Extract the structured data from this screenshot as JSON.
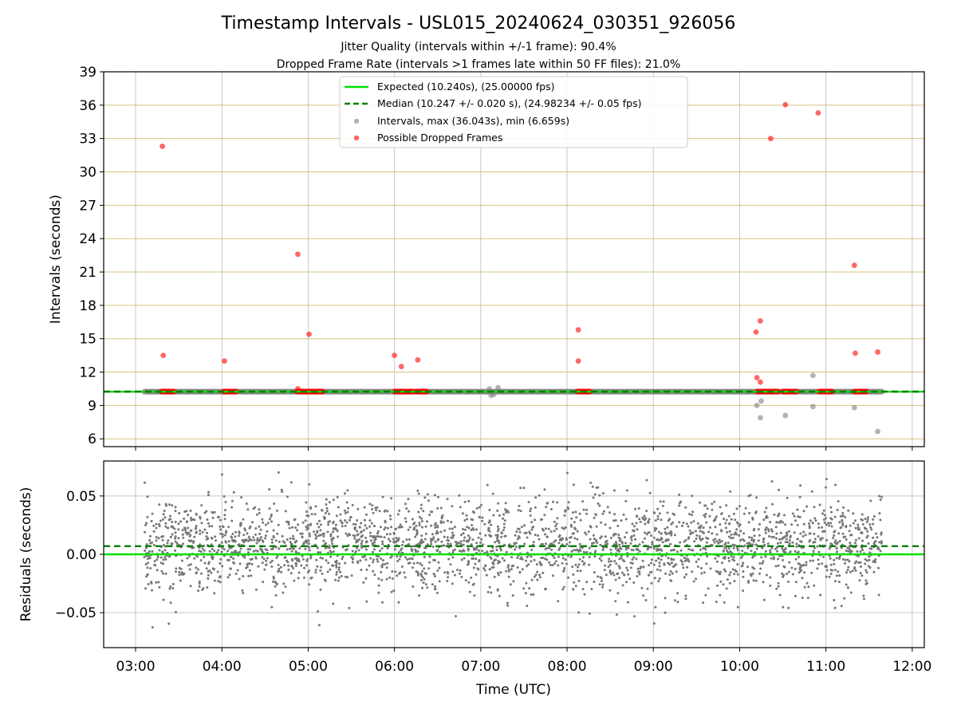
{
  "figure": {
    "title": "Timestamp Intervals - USL015_20240624_030351_926056",
    "subtitle_1": "Jitter Quality (intervals within +/-1 frame): 90.4%",
    "subtitle_2": "Dropped Frame Rate (intervals >1 frames late within 50 FF files): 21.0%"
  },
  "chart_data": [
    {
      "type": "scatter",
      "name": "intervals-panel",
      "ylabel": "Intervals (seconds)",
      "ylim": [
        5.3,
        39
      ],
      "yticks": [
        6,
        9,
        12,
        15,
        18,
        21,
        24,
        27,
        30,
        33,
        36,
        39
      ],
      "xlim_hours": [
        2.63,
        12.14
      ],
      "xticks": [
        "03:00",
        "04:00",
        "05:00",
        "06:00",
        "07:00",
        "08:00",
        "09:00",
        "10:00",
        "11:00",
        "12:00"
      ],
      "xtick_hours": [
        3,
        4,
        5,
        6,
        7,
        8,
        9,
        10,
        11,
        12
      ],
      "grid": true,
      "legend_position": "upper-center",
      "lines": [
        {
          "name": "Expected (10.240s), (25.00000 fps)",
          "y": 10.24,
          "color": "#00e000",
          "style": "solid"
        },
        {
          "name": "Median (10.247 +/- 0.020 s), (24.98234 +/- 0.05 fps)",
          "y": 10.247,
          "color": "#007f00",
          "style": "dashed"
        }
      ],
      "series": [
        {
          "name": "Intervals, max (36.043s), min (6.659s)",
          "color": "#808080",
          "baseline_band": {
            "x_start": 3.1,
            "x_end": 11.65,
            "y": 10.24
          },
          "points": [
            {
              "x": 7.1,
              "y": 10.5
            },
            {
              "x": 7.15,
              "y": 10.0
            },
            {
              "x": 7.2,
              "y": 10.6
            },
            {
              "x": 7.12,
              "y": 9.9
            },
            {
              "x": 10.2,
              "y": 9.0
            },
            {
              "x": 10.24,
              "y": 7.9
            },
            {
              "x": 10.25,
              "y": 9.4
            },
            {
              "x": 10.53,
              "y": 8.1
            },
            {
              "x": 10.85,
              "y": 11.7
            },
            {
              "x": 10.85,
              "y": 8.9
            },
            {
              "x": 11.33,
              "y": 8.8
            },
            {
              "x": 11.6,
              "y": 6.66
            }
          ]
        },
        {
          "name": "Possible Dropped Frames",
          "color": "#ff0000",
          "clusters": [
            {
              "x_start": 3.3,
              "x_end": 3.45,
              "y": 10.25
            },
            {
              "x_start": 4.02,
              "x_end": 4.17,
              "y": 10.25
            },
            {
              "x_start": 4.87,
              "x_end": 5.17,
              "y": 10.25
            },
            {
              "x_start": 6.0,
              "x_end": 6.22,
              "y": 10.25
            },
            {
              "x_start": 6.25,
              "x_end": 6.38,
              "y": 10.25
            },
            {
              "x_start": 8.12,
              "x_end": 8.27,
              "y": 10.25
            },
            {
              "x_start": 10.2,
              "x_end": 10.45,
              "y": 10.25
            },
            {
              "x_start": 10.5,
              "x_end": 10.67,
              "y": 10.25
            },
            {
              "x_start": 10.92,
              "x_end": 11.08,
              "y": 10.25
            },
            {
              "x_start": 11.33,
              "x_end": 11.48,
              "y": 10.25
            }
          ],
          "points": [
            {
              "x": 3.31,
              "y": 32.3
            },
            {
              "x": 3.32,
              "y": 13.5
            },
            {
              "x": 4.03,
              "y": 13.0
            },
            {
              "x": 4.88,
              "y": 22.6
            },
            {
              "x": 4.88,
              "y": 10.5
            },
            {
              "x": 5.01,
              "y": 15.4
            },
            {
              "x": 6.0,
              "y": 13.5
            },
            {
              "x": 6.08,
              "y": 12.5
            },
            {
              "x": 6.27,
              "y": 13.1
            },
            {
              "x": 8.13,
              "y": 15.8
            },
            {
              "x": 8.13,
              "y": 13.0
            },
            {
              "x": 10.19,
              "y": 15.6
            },
            {
              "x": 10.2,
              "y": 11.5
            },
            {
              "x": 10.24,
              "y": 16.6
            },
            {
              "x": 10.24,
              "y": 11.1
            },
            {
              "x": 10.36,
              "y": 33.0
            },
            {
              "x": 10.53,
              "y": 36.04
            },
            {
              "x": 10.91,
              "y": 35.3
            },
            {
              "x": 11.33,
              "y": 21.6
            },
            {
              "x": 11.34,
              "y": 13.7
            },
            {
              "x": 11.6,
              "y": 13.8
            }
          ]
        }
      ]
    },
    {
      "type": "scatter",
      "name": "residuals-panel",
      "xlabel": "Time (UTC)",
      "ylabel": "Residuals (seconds)",
      "ylim": [
        -0.08,
        0.08
      ],
      "yticks": [
        0.05,
        0.0,
        -0.05
      ],
      "ytick_labels": [
        "0.05",
        "0.00",
        "−0.05"
      ],
      "grid": true,
      "lines": [
        {
          "y": 0.0,
          "color": "#00e000",
          "style": "solid"
        },
        {
          "y": 0.007,
          "color": "#007f00",
          "style": "dashed"
        }
      ],
      "series": [
        {
          "color": "#777777",
          "x_range_hours": [
            3.1,
            11.65
          ],
          "count": 2800,
          "distribution": {
            "mean": 0.007,
            "std": 0.02,
            "min": -0.075,
            "max": 0.075
          }
        }
      ]
    }
  ]
}
